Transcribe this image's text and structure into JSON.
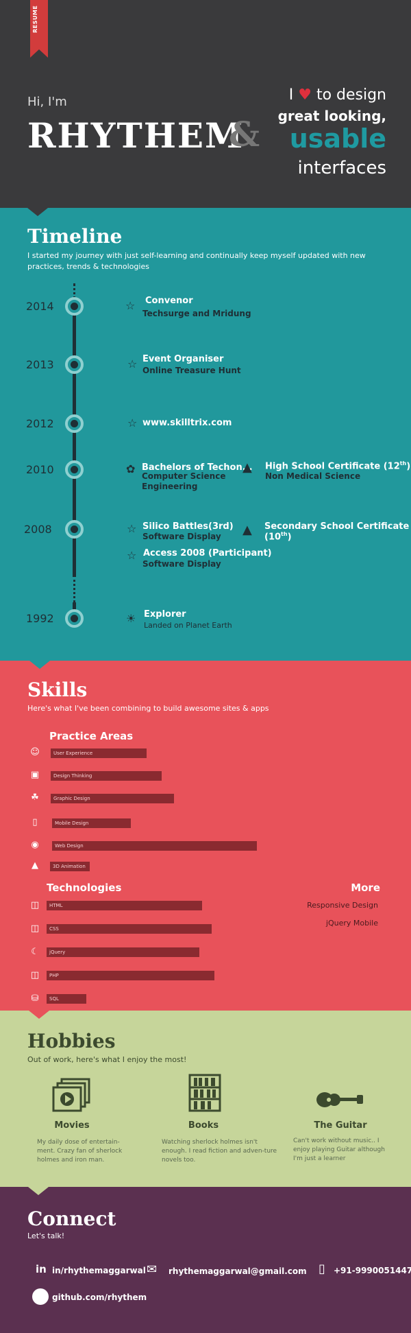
{
  "header": {
    "ribbon": "RESUME",
    "greeting": "Hi, I'm",
    "name": "RHYTHEM",
    "ampersand": "&",
    "tagline_i": "I",
    "tagline_to": "to design",
    "tagline_great": "great looking,",
    "tagline_usable": "usable",
    "tagline_interfaces": "interfaces"
  },
  "timeline": {
    "title": "Timeline",
    "subtitle": "I started my journey with just self-learning and continually keep myself updated with new practices, trends & technologies",
    "years": [
      "2014",
      "2013",
      "2012",
      "2010",
      "2008",
      "1992"
    ],
    "events": {
      "e2014_title": "Convenor",
      "e2014_sub": "Techsurge and Mridung",
      "e2013_title": "Event Organiser",
      "e2013_sub": "Online Treasure Hunt",
      "e2012_title": "www.skilltrix.com",
      "e2010a_title": "Bachelors of Techon...",
      "e2010a_sub1": "Computer Science",
      "e2010a_sub2": "Engineering",
      "e2010b_title": "High School Certificate (12",
      "e2010b_sup": "th",
      "e2010b_close": ")",
      "e2010b_sub": "Non Medical Science",
      "e2008a_title": "Silico Battles(3rd)",
      "e2008a_sub": "Software Display",
      "e2008b_title": "Secondary School Certificate",
      "e2008b_line2": "(10",
      "e2008b_sup": "th",
      "e2008b_close": ")",
      "e2008c_title": "Access 2008 (Participant)",
      "e2008c_sub": "Software Display",
      "e1992_title": "Explorer",
      "e1992_sub": "Landed on Planet Earth"
    }
  },
  "skills": {
    "title": "Skills",
    "subtitle": "Here's what I've been combining to build awesome sites & apps",
    "practice_heading": "Practice Areas",
    "practice": [
      {
        "label": "User Experience",
        "level": 0.39
      },
      {
        "label": "Design Thinking",
        "level": 0.45
      },
      {
        "label": "Graphic Design",
        "level": 0.5
      },
      {
        "label": "Mobile Design",
        "level": 0.32
      },
      {
        "label": "Web Design",
        "level": 0.83
      },
      {
        "label": "3D Animation",
        "level": 0.16
      }
    ],
    "tech_heading": "Technologies",
    "technologies": [
      {
        "label": "HTML",
        "level": 0.63
      },
      {
        "label": "CSS",
        "level": 0.67
      },
      {
        "label": "jQuery",
        "level": 0.62
      },
      {
        "label": "PHP",
        "level": 0.68
      },
      {
        "label": "SQL",
        "level": 0.16
      }
    ],
    "more_heading": "More",
    "more": [
      "Responsive Design",
      "jQuery Mobile"
    ]
  },
  "hobbies": {
    "title": "Hobbies",
    "subtitle": "Out of work, here's what I enjoy the most!",
    "movies_title": "Movies",
    "movies_text": "My daily dose of entertain-ment. Crazy fan of sherlock holmes and iron man.",
    "books_title": "Books",
    "books_text": "Watching sherlock holmes isn't enough. I read fiction and adven-ture novels too.",
    "guitar_title": "The Guitar",
    "guitar_text": "Can't work without music.. I enjoy playing Guitar although I'm just a learner"
  },
  "connect": {
    "title": "Connect",
    "subtitle": "Let's talk!",
    "linkedin": "in/rhythemaggarwal",
    "email": "rhythemaggarwal@gmail.com",
    "phone": "+91-9990051447",
    "github": "github.com/rhythem"
  },
  "colors": {
    "header_bg": "#3a3a3c",
    "timeline_bg": "#21989c",
    "skills_bg": "#e8525a",
    "hobbies_bg": "#c6d59a",
    "connect_bg": "#5b3050",
    "accent_teal": "#1f9aa1",
    "heart_red": "#e0303d"
  }
}
